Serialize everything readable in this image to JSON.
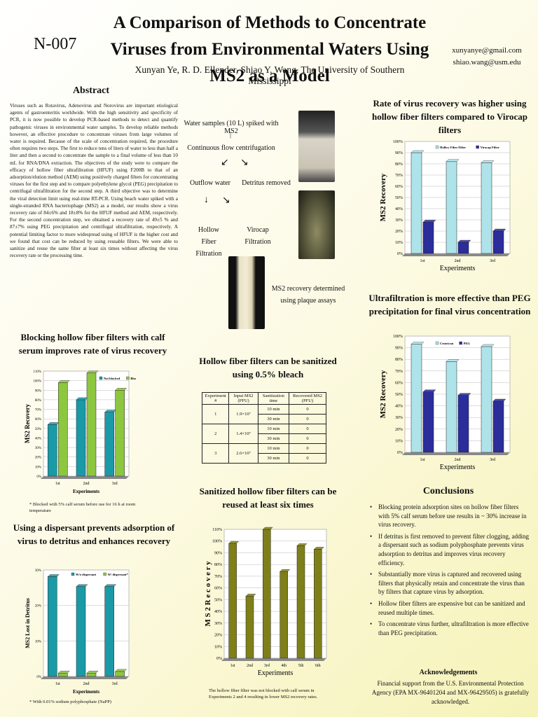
{
  "header": {
    "title": "A Comparison of Methods to Concentrate Viruses from Environmental Waters Using MS2 as a Model",
    "poster_id": "N-007",
    "authors": "Xunyan Ye, R. D. Ellender, Shiao Y. Wang, The University of Southern Mississippi",
    "email1": "xunyanye@gmail.com",
    "email2": "shiao.wang@usm.edu"
  },
  "abstract": {
    "title": "Abstract",
    "text": "Viruses such as Rotavirus, Adenovirus and Norovirus are important etiological agents of gastroenteritis worldwide. With the high sensitivity and specificity of PCR, it is now possible to develop PCR-based methods to detect and quantify pathogenic viruses in environmental water samples. To develop reliable methods however, an effective procedure to concentrate viruses from large volumes of water is required. Because of the scale of concentration required, the procedure often requires two steps. The first to reduce tens of liters of water to less than half a liter and then a second to concentrate the sample to a final volume of less than 10 mL for RNA/DNA extraction. The objectives of the study were to compare the efficacy of hollow fiber ultrafiltration (HFUF) using F200B to that of an adsorption/elution method (AEM) using positively charged filters for concentrating viruses for the first step and to compare polyethylene glycol (PEG) precipitation to centrifugal ultrafiltration for the second step. A third objective was to determine the viral detection limit using real-time RT-PCR. Using beach water spiked with a single-stranded RNA bacteriophage (MS2) as a model, our results show a virus recovery rate of 84±6% and 18±8% for the HFUF method and AEM, respectively. For the second concentration step, we obtained a recovery rate of 49±5 % and 87±7% using PEG precipitation and centrifugal ultrafiltration, respectively. A potential limiting factor to more widespread using of HFUF is the higher cost and we found that cost can be reduced by using reusable filters. We were able to sanitize and reuse the same filter at least six times without affecting the virus recovery rate or the processing time."
  },
  "flowchart": {
    "step1": "Water samples (10 L) spiked with MS2",
    "step2": "Continuous flow centrifugation",
    "outflow": "Outflow water",
    "detritus": "Detritus removed",
    "hollow": "Hollow Fiber Filtration",
    "virocap": "Virocap Filtration",
    "result": "MS2 recovery determined using plaque assays"
  },
  "blocking": {
    "title": "Blocking hollow fiber filters with calf serum improves rate of virus recovery",
    "footnote": "* Blocked with 5% calf serum before use for 16 h at room temperature"
  },
  "dispersant": {
    "title": "Using a dispersant prevents adsorption of virus to detritus and enhances recovery",
    "footnote": "* With 0.01% sodium polyphosphate (NaPP)"
  },
  "sanitize": {
    "title": "Hollow fiber filters can be sanitized using 0.5% bleach",
    "headers": [
      "Experiment #",
      "Input MS2 (PFU)",
      "Sanitization time",
      "Recovered MS2 (PFU)"
    ],
    "rows": [
      {
        "exp": "1",
        "input": "1.9×10⁷",
        "times": [
          "10 min",
          "30 min"
        ],
        "recovered": [
          "0",
          "0"
        ]
      },
      {
        "exp": "2",
        "input": "1.4×10⁷",
        "times": [
          "10 min",
          "30 min"
        ],
        "recovered": [
          "0",
          "0"
        ]
      },
      {
        "exp": "3",
        "input": "2.6×10⁷",
        "times": [
          "10 min",
          "30 min"
        ],
        "recovered": [
          "0",
          "0"
        ]
      }
    ]
  },
  "reuse": {
    "title": "Sanitized hollow fiber filters can be reused at least six times",
    "footnote": "The hollow fiber filter was not blocked with calf serum in Experiments 2 and 4 resulting in lower MS2 recovery rates."
  },
  "recovery": {
    "title": "Rate of virus recovery was higher using hollow fiber filters compared to Virocap filters"
  },
  "ultra": {
    "title": "Ultrafiltration is more effective than PEG precipitation for final virus concentration"
  },
  "conclusions": {
    "title": "Conclusions",
    "items": [
      "Blocking protein adsorption sites on hollow fiber filters with 5% calf serum before use results in ~ 30% increase in virus recovery.",
      "If detritus is first removed to prevent filter clogging, adding a dispersant such as sodium polyphosphate prevents virus adsorption to detritus and improves virus recovery efficiency.",
      "Substantially more virus is captured and recovered using filters that physically retain and concentrate the virus than by filters that capture virus by adsorption.",
      "Hollow fiber filters are expensive but can be sanitized and reused multiple times.",
      "To concentrate virus further, ultrafiltration is more effective than PEG precipitation."
    ]
  },
  "ack": {
    "title": "Acknowledgements",
    "text": "Financial support from the U.S. Environmental Protection Agency (EPA MX-96401204 and MX-96429505) is gratefully acknowledged."
  },
  "chart_data": [
    {
      "id": "blocking",
      "type": "bar",
      "categories": [
        "1st",
        "2nd",
        "3rd"
      ],
      "series": [
        {
          "name": "Not blocked",
          "values": [
            54,
            80,
            67
          ],
          "color": "#1a9aa6"
        },
        {
          "name": "Blocked*",
          "values": [
            98,
            108,
            90
          ],
          "color": "#8dc63f"
        }
      ],
      "ylabel": "MS2 Recovery",
      "xlabel": "Experiments",
      "ylim": [
        0,
        110
      ],
      "yticks": [
        "0%",
        "10%",
        "20%",
        "30%",
        "40%",
        "50%",
        "60%",
        "70%",
        "80%",
        "90%",
        "100%",
        "110%"
      ]
    },
    {
      "id": "dispersant",
      "type": "bar",
      "categories": [
        "1st",
        "2nd",
        "3rd"
      ],
      "series": [
        {
          "name": "W/o dispersant",
          "values": [
            30,
            27,
            27
          ],
          "color": "#1a9aa6"
        },
        {
          "name": "W/ dispersant*",
          "values": [
            1,
            1,
            1.5
          ],
          "color": "#8dc63f"
        }
      ],
      "ylabel": "MS2 Lost in Detritus",
      "xlabel": "Experiments",
      "ylim": [
        0,
        32
      ],
      "yticks": [
        "0%",
        "10%",
        "20%",
        "30%"
      ]
    },
    {
      "id": "reuse",
      "type": "bar",
      "categories": [
        "1st",
        "2nd",
        "3rd",
        "4th",
        "5th",
        "6th"
      ],
      "series": [
        {
          "name": "",
          "values": [
            98,
            53,
            110,
            74,
            96,
            93
          ],
          "color": "#7f7f1a"
        }
      ],
      "ylabel": "M S 2 R e c o v e r y",
      "xlabel": "Experiments",
      "ylim": [
        0,
        110
      ],
      "yticks": [
        "0%",
        "10%",
        "20%",
        "30%",
        "40%",
        "50%",
        "60%",
        "70%",
        "80%",
        "90%",
        "100%",
        "110%"
      ]
    },
    {
      "id": "recovery",
      "type": "bar",
      "categories": [
        "1st",
        "2nd",
        "3rd"
      ],
      "series": [
        {
          "name": "Hollow Fiber Filter",
          "values": [
            90,
            82,
            81
          ],
          "color": "#aee3ea"
        },
        {
          "name": "Virocap Filter",
          "values": [
            28,
            10,
            20
          ],
          "color": "#2b2d9a"
        }
      ],
      "ylabel": "MS2 Recovery",
      "xlabel": "Experiments",
      "ylim": [
        0,
        100
      ],
      "yticks": [
        "0%",
        "10%",
        "20%",
        "30%",
        "40%",
        "50%",
        "60%",
        "70%",
        "80%",
        "90%",
        "100%"
      ]
    },
    {
      "id": "ultra",
      "type": "bar",
      "categories": [
        "1st",
        "2nd",
        "3rd"
      ],
      "series": [
        {
          "name": "Centricon",
          "values": [
            93,
            78,
            91
          ],
          "color": "#aee3ea"
        },
        {
          "name": "PEG",
          "values": [
            52,
            49,
            44
          ],
          "color": "#2b2d9a"
        }
      ],
      "ylabel": "MS2 Recovery",
      "xlabel": "Experiments",
      "ylim": [
        0,
        100
      ],
      "yticks": [
        "0%",
        "10%",
        "20%",
        "30%",
        "40%",
        "50%",
        "60%",
        "70%",
        "80%",
        "90%",
        "100%"
      ]
    }
  ]
}
